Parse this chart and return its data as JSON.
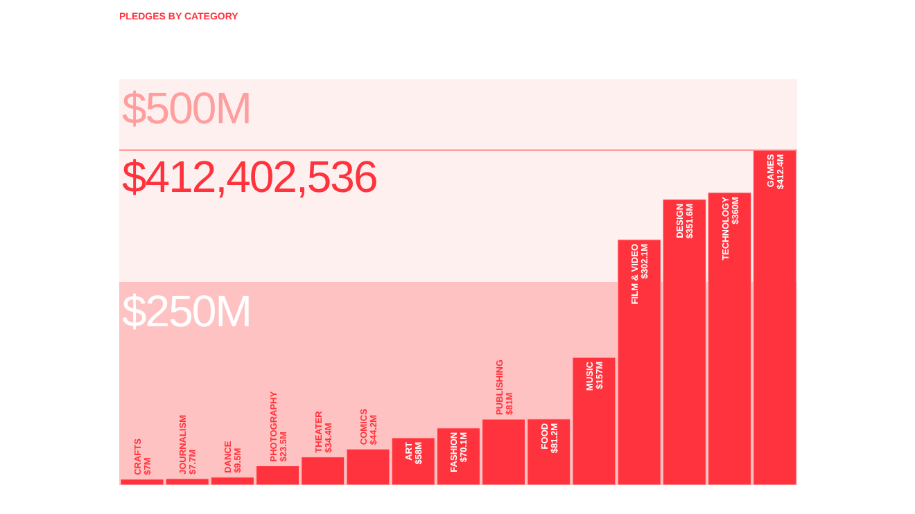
{
  "chart_data": {
    "type": "bar",
    "title": "PLEDGES BY CATEGORY",
    "categories": [
      "CRAFTS",
      "JOURNALISM",
      "DANCE",
      "PHOTOGRAPHY",
      "THEATER",
      "COMICS",
      "ART",
      "FASHION",
      "PUBLISHING",
      "FOOD",
      "MUSIC",
      "FILM & VIDEO",
      "DESIGN",
      "TECHNOLOGY",
      "GAMES"
    ],
    "values": [
      7,
      7.7,
      9.5,
      23.5,
      34.4,
      44.2,
      58,
      70.1,
      81,
      81.2,
      157,
      302.1,
      351.6,
      360,
      412.4
    ],
    "value_labels": [
      "$7M",
      "$7.7M",
      "$9.5M",
      "$23.5M",
      "$34.4M",
      "$44.2M",
      "$58M",
      "$70.1M",
      "$81M",
      "$81.2M",
      "$157M",
      "$302.1M",
      "$351.6M",
      "$360M",
      "$412.4M"
    ],
    "color": "#ff333d",
    "ylim": [
      0,
      500
    ],
    "tick_labels": false,
    "bands": [
      {
        "axis": "y",
        "from": 0,
        "to": 250,
        "label": "$250M",
        "color": "#ffc2c2"
      },
      {
        "axis": "y",
        "from": 250,
        "to": 500,
        "label": "$500M",
        "color": "#fff0f0"
      }
    ],
    "ref_lines": [
      {
        "axis": "y",
        "value": 412.402536,
        "label": "$412,402,536",
        "color": "#ff8a8a"
      }
    ]
  }
}
